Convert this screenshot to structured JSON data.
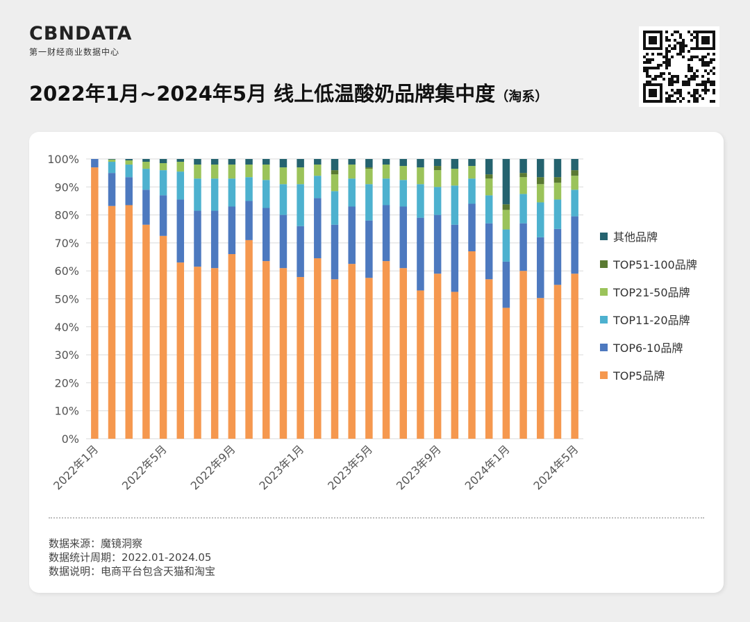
{
  "header": {
    "logo_text": "CBNDATA",
    "logo_sub": "第一财经商业数据中心",
    "title": "2022年1月~2024年5月 线上低温酸奶品牌集中度",
    "title_sub": "（淘系）"
  },
  "footer": {
    "source": "数据来源：魔镜洞察",
    "period": "数据统计周期：2022.01-2024.05",
    "note": "数据说明：电商平台包含天猫和淘宝"
  },
  "chart_data": {
    "type": "bar",
    "stacked": true,
    "categories": [
      "2022年1月",
      "2022年2月",
      "2022年3月",
      "2022年4月",
      "2022年5月",
      "2022年6月",
      "2022年7月",
      "2022年8月",
      "2022年9月",
      "2022年10月",
      "2022年11月",
      "2022年12月",
      "2023年1月",
      "2023年2月",
      "2023年3月",
      "2023年4月",
      "2023年5月",
      "2023年6月",
      "2023年7月",
      "2023年8月",
      "2023年9月",
      "2023年10月",
      "2023年11月",
      "2023年12月",
      "2024年1月",
      "2024年2月",
      "2024年3月",
      "2024年4月",
      "2024年5月"
    ],
    "x_tick_labels_shown": [
      "2022年1月",
      "2022年5月",
      "2022年9月",
      "2023年1月",
      "2023年5月",
      "2023年9月",
      "2024年1月",
      "2024年5月"
    ],
    "y_tick_labels": [
      "0%",
      "10%",
      "20%",
      "30%",
      "40%",
      "50%",
      "60%",
      "70%",
      "80%",
      "90%",
      "100%"
    ],
    "ylim": [
      0,
      100
    ],
    "y_unit": "%",
    "grid": true,
    "legend_position": "right",
    "series": [
      {
        "name": "TOP5品牌",
        "color": "#f5984f",
        "values": [
          97,
          83.2,
          83.5,
          76.5,
          72.5,
          63,
          61.5,
          61,
          66,
          71,
          63.5,
          61,
          57.8,
          64.5,
          57,
          62.5,
          57.5,
          63.5,
          61,
          53,
          59,
          52.5,
          67,
          57,
          46.8,
          60,
          50.3,
          55,
          59
        ]
      },
      {
        "name": "TOP6-10品牌",
        "color": "#4d79bf",
        "values": [
          3,
          11.8,
          10,
          12.5,
          14.5,
          22.5,
          20,
          20.5,
          17,
          14,
          19,
          19,
          18.2,
          21.5,
          19.5,
          20.5,
          20.5,
          20,
          22,
          26,
          21,
          24,
          17,
          20,
          16.5,
          17,
          21.7,
          20,
          20.5
        ]
      },
      {
        "name": "TOP11-20品牌",
        "color": "#4db1cf",
        "values": [
          0,
          4,
          4.5,
          7.5,
          9,
          10,
          11.5,
          11.5,
          10,
          8.5,
          10,
          11,
          15,
          8,
          12,
          10,
          13,
          9.5,
          9.5,
          12,
          10,
          14,
          9,
          10,
          11.5,
          10.5,
          12.5,
          10.5,
          9.5
        ]
      },
      {
        "name": "TOP21-50品牌",
        "color": "#9bc35a",
        "values": [
          0,
          0.8,
          1.5,
          2.5,
          2.5,
          3.5,
          5,
          5,
          5,
          4.5,
          5.5,
          6,
          6,
          4,
          6,
          5,
          5.5,
          5,
          5,
          6,
          6,
          6,
          4.5,
          6,
          7,
          6,
          6.5,
          6,
          5
        ]
      },
      {
        "name": "TOP51-100品牌",
        "color": "#5a7a32",
        "values": [
          0,
          0,
          0,
          0,
          0,
          0,
          0,
          0,
          0,
          0,
          0,
          0,
          0,
          0,
          1.5,
          0,
          0.5,
          0,
          0,
          0,
          1.5,
          0,
          0,
          1.5,
          2,
          1.5,
          2.5,
          2,
          2
        ]
      },
      {
        "name": "其他品牌",
        "color": "#25636f",
        "values": [
          0,
          0.2,
          0.5,
          1,
          1.5,
          1,
          2,
          2,
          2,
          2,
          2,
          3,
          3,
          2,
          4,
          2,
          3,
          2,
          2.5,
          3,
          2.5,
          3.5,
          2.5,
          5.5,
          16.2,
          5,
          6.5,
          6.5,
          4
        ]
      }
    ]
  }
}
